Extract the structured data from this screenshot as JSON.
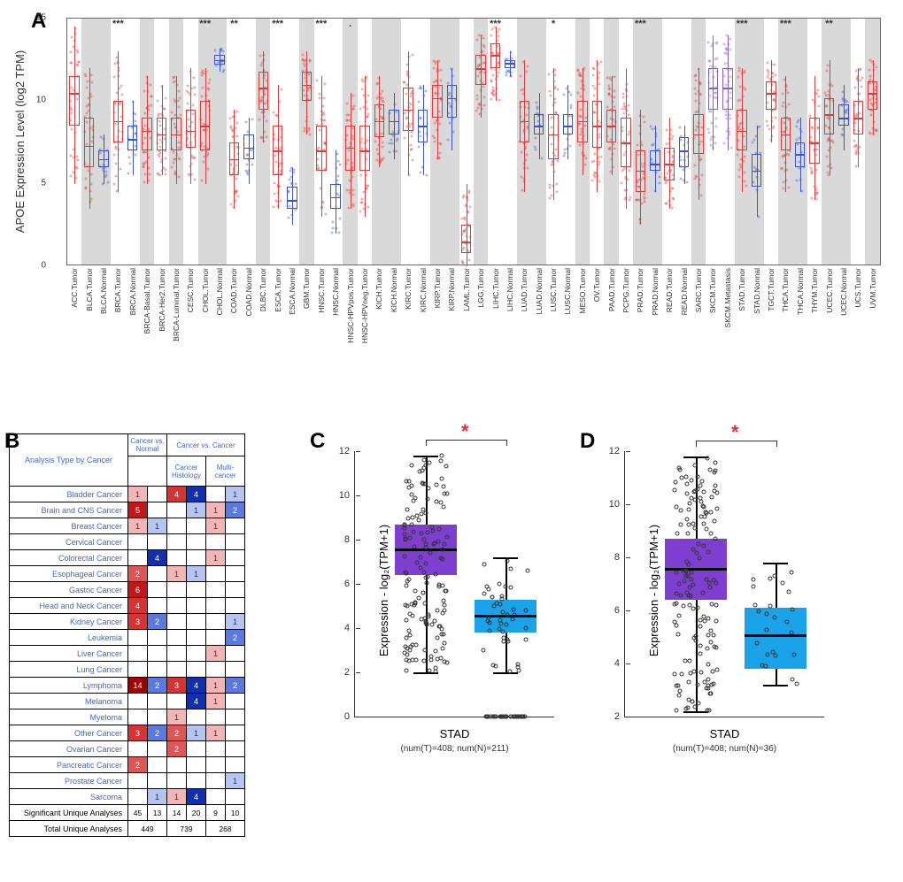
{
  "panel_labels": {
    "A": "A",
    "B": "B",
    "C": "C",
    "D": "D"
  },
  "colors": {
    "tumor": "#e63838",
    "normal": "#3a52d8",
    "metastasis": "#8b5fc9",
    "shade": "#d9d9d9",
    "purple_box": "#7e3fd1",
    "blue_box": "#1aa3e8",
    "sig_star": "#e03030",
    "onc_red_hi": "#c92020",
    "onc_red_lo": "#f2b6b6",
    "onc_blue_hi": "#1030b0",
    "onc_blue_lo": "#b6c4f2"
  },
  "panelA": {
    "y_title": "APOE Expression Level (log2 TPM)",
    "ylim": [
      0,
      15
    ],
    "yticks": [
      0,
      5,
      10,
      15
    ],
    "categories": [
      {
        "label": "ACC.Tumor",
        "type": "T",
        "q1": 8.5,
        "med": 10.5,
        "q3": 11.5,
        "lo": 5,
        "hi": 14.5,
        "shade": false,
        "sig": ""
      },
      {
        "label": "BLCA.Tumor",
        "type": "T",
        "q1": 6,
        "med": 7.3,
        "q3": 9,
        "lo": 3.5,
        "hi": 12,
        "shade": true,
        "sig": ""
      },
      {
        "label": "BLCA.Normal",
        "type": "N",
        "q1": 6,
        "med": 6.5,
        "q3": 7,
        "lo": 5,
        "hi": 8,
        "shade": true,
        "sig": ""
      },
      {
        "label": "BRCA.Tumor",
        "type": "T",
        "q1": 7.5,
        "med": 8.8,
        "q3": 10,
        "lo": 4.5,
        "hi": 13,
        "shade": false,
        "sig": "***"
      },
      {
        "label": "BRCA.Normal",
        "type": "N",
        "q1": 7,
        "med": 7.7,
        "q3": 8.5,
        "lo": 5.5,
        "hi": 10,
        "shade": false,
        "sig": ""
      },
      {
        "label": "BRCA-Basal.Tumor",
        "type": "T",
        "q1": 7,
        "med": 8.2,
        "q3": 9,
        "lo": 5,
        "hi": 11.5,
        "shade": true,
        "sig": ""
      },
      {
        "label": "BRCA-Her2.Tumor",
        "type": "T",
        "q1": 7,
        "med": 8,
        "q3": 9,
        "lo": 5.5,
        "hi": 11,
        "shade": false,
        "sig": ""
      },
      {
        "label": "BRCA-Luminal.Tumor",
        "type": "T",
        "q1": 7,
        "med": 8,
        "q3": 9,
        "lo": 5,
        "hi": 11.5,
        "shade": true,
        "sig": ""
      },
      {
        "label": "CESC.Tumor",
        "type": "T",
        "q1": 7.2,
        "med": 8.2,
        "q3": 9.5,
        "lo": 5,
        "hi": 12,
        "shade": false,
        "sig": ""
      },
      {
        "label": "CHOL.Tumor",
        "type": "T",
        "q1": 7,
        "med": 8.5,
        "q3": 10,
        "lo": 5,
        "hi": 12,
        "shade": true,
        "sig": "***"
      },
      {
        "label": "CHOL.Normal",
        "type": "N",
        "q1": 12.2,
        "med": 12.5,
        "q3": 12.8,
        "lo": 11.8,
        "hi": 13.2,
        "shade": true,
        "sig": ""
      },
      {
        "label": "COAD.Tumor",
        "type": "T",
        "q1": 5.5,
        "med": 6.5,
        "q3": 7.5,
        "lo": 3.5,
        "hi": 9.5,
        "shade": false,
        "sig": "**"
      },
      {
        "label": "COAD.Normal",
        "type": "N",
        "q1": 6.5,
        "med": 7.2,
        "q3": 8,
        "lo": 5,
        "hi": 9,
        "shade": false,
        "sig": ""
      },
      {
        "label": "DLBC.Tumor",
        "type": "T",
        "q1": 9.5,
        "med": 10.8,
        "q3": 11.8,
        "lo": 7.5,
        "hi": 13,
        "shade": true,
        "sig": ""
      },
      {
        "label": "ESCA.Tumor",
        "type": "T",
        "q1": 5.5,
        "med": 7,
        "q3": 8.5,
        "lo": 3.5,
        "hi": 11,
        "shade": false,
        "sig": "***"
      },
      {
        "label": "ESCA.Normal",
        "type": "N",
        "q1": 3.5,
        "med": 4,
        "q3": 4.8,
        "lo": 2.5,
        "hi": 6,
        "shade": false,
        "sig": ""
      },
      {
        "label": "GBM.Tumor",
        "type": "T",
        "q1": 10,
        "med": 11,
        "q3": 11.8,
        "lo": 8,
        "hi": 13,
        "shade": true,
        "sig": ""
      },
      {
        "label": "HNSC.Tumor",
        "type": "T",
        "q1": 5.8,
        "med": 7,
        "q3": 8.5,
        "lo": 3,
        "hi": 11.5,
        "shade": false,
        "sig": "***"
      },
      {
        "label": "HNSC.Normal",
        "type": "N",
        "q1": 3.5,
        "med": 4.2,
        "q3": 5,
        "lo": 2,
        "hi": 7,
        "shade": false,
        "sig": ""
      },
      {
        "label": "HNSC-HPVpos.Tumor",
        "type": "T",
        "q1": 5.8,
        "med": 7.2,
        "q3": 8.5,
        "lo": 3.5,
        "hi": 10.5,
        "shade": true,
        "sig": "."
      },
      {
        "label": "HNSC-HPVneg.Tumor",
        "type": "T",
        "q1": 5.8,
        "med": 7,
        "q3": 8.5,
        "lo": 3,
        "hi": 11.5,
        "shade": false,
        "sig": ""
      },
      {
        "label": "KICH.Tumor",
        "type": "T",
        "q1": 7.8,
        "med": 8.8,
        "q3": 9.8,
        "lo": 6,
        "hi": 11.5,
        "shade": true,
        "sig": ""
      },
      {
        "label": "KICH.Normal",
        "type": "N",
        "q1": 8,
        "med": 8.8,
        "q3": 9.5,
        "lo": 6.5,
        "hi": 10.5,
        "shade": true,
        "sig": ""
      },
      {
        "label": "KIRC.Tumor",
        "type": "T",
        "q1": 8.2,
        "med": 9.5,
        "q3": 10.8,
        "lo": 5.5,
        "hi": 13,
        "shade": false,
        "sig": ""
      },
      {
        "label": "KIRC.Normal",
        "type": "N",
        "q1": 7.5,
        "med": 8.5,
        "q3": 9.5,
        "lo": 5.5,
        "hi": 11,
        "shade": false,
        "sig": ""
      },
      {
        "label": "KIRP.Tumor",
        "type": "T",
        "q1": 9,
        "med": 10.2,
        "q3": 11,
        "lo": 6.5,
        "hi": 12.5,
        "shade": true,
        "sig": ""
      },
      {
        "label": "KIRP.Normal",
        "type": "N",
        "q1": 9,
        "med": 10.2,
        "q3": 11,
        "lo": 7,
        "hi": 12,
        "shade": true,
        "sig": ""
      },
      {
        "label": "LAML.Tumor",
        "type": "T",
        "q1": 0.8,
        "med": 1.5,
        "q3": 2.5,
        "lo": 0,
        "hi": 5,
        "shade": false,
        "sig": ""
      },
      {
        "label": "LGG.Tumor",
        "type": "T",
        "q1": 11,
        "med": 12,
        "q3": 12.8,
        "lo": 9,
        "hi": 14,
        "shade": true,
        "sig": ""
      },
      {
        "label": "LIHC.Tumor",
        "type": "T",
        "q1": 12,
        "med": 12.8,
        "q3": 13.5,
        "lo": 10,
        "hi": 14.5,
        "shade": false,
        "sig": "***"
      },
      {
        "label": "LIHC.Normal",
        "type": "N",
        "q1": 12,
        "med": 12.3,
        "q3": 12.5,
        "lo": 11.5,
        "hi": 13,
        "shade": false,
        "sig": ""
      },
      {
        "label": "LUAD.Tumor",
        "type": "T",
        "q1": 7.5,
        "med": 8.8,
        "q3": 10,
        "lo": 4.5,
        "hi": 12.5,
        "shade": true,
        "sig": ""
      },
      {
        "label": "LUAD.Normal",
        "type": "N",
        "q1": 8,
        "med": 8.5,
        "q3": 9.2,
        "lo": 6.5,
        "hi": 10.5,
        "shade": true,
        "sig": ""
      },
      {
        "label": "LUSC.Tumor",
        "type": "T",
        "q1": 6.5,
        "med": 8,
        "q3": 9.2,
        "lo": 4,
        "hi": 12,
        "shade": false,
        "sig": "*"
      },
      {
        "label": "LUSC.Normal",
        "type": "N",
        "q1": 8,
        "med": 8.5,
        "q3": 9.2,
        "lo": 6.5,
        "hi": 11,
        "shade": false,
        "sig": ""
      },
      {
        "label": "MESO.Tumor",
        "type": "T",
        "q1": 7.5,
        "med": 8.8,
        "q3": 10,
        "lo": 5.5,
        "hi": 12,
        "shade": true,
        "sig": ""
      },
      {
        "label": "OV.Tumor",
        "type": "T",
        "q1": 7.2,
        "med": 8.5,
        "q3": 10,
        "lo": 4.5,
        "hi": 12.5,
        "shade": false,
        "sig": ""
      },
      {
        "label": "PAAD.Tumor",
        "type": "T",
        "q1": 7.5,
        "med": 8.5,
        "q3": 9.5,
        "lo": 5.5,
        "hi": 11.5,
        "shade": true,
        "sig": ""
      },
      {
        "label": "PCPG.Tumor",
        "type": "T",
        "q1": 6,
        "med": 7.5,
        "q3": 9,
        "lo": 3.5,
        "hi": 12,
        "shade": false,
        "sig": ""
      },
      {
        "label": "PRAD.Tumor",
        "type": "T",
        "q1": 4.5,
        "med": 5.8,
        "q3": 7,
        "lo": 2.5,
        "hi": 9.5,
        "shade": true,
        "sig": "***"
      },
      {
        "label": "PRAD.Normal",
        "type": "N",
        "q1": 5.8,
        "med": 6.2,
        "q3": 7,
        "lo": 4.5,
        "hi": 8.5,
        "shade": true,
        "sig": ""
      },
      {
        "label": "READ.Tumor",
        "type": "T",
        "q1": 5.2,
        "med": 6.2,
        "q3": 7.2,
        "lo": 3.5,
        "hi": 9,
        "shade": false,
        "sig": ""
      },
      {
        "label": "READ.Normal",
        "type": "N",
        "q1": 6,
        "med": 7,
        "q3": 7.8,
        "lo": 5,
        "hi": 8.5,
        "shade": false,
        "sig": ""
      },
      {
        "label": "SARC.Tumor",
        "type": "T",
        "q1": 6.8,
        "med": 8,
        "q3": 9.2,
        "lo": 4,
        "hi": 12,
        "shade": true,
        "sig": ""
      },
      {
        "label": "SKCM.Tumor",
        "type": "M",
        "q1": 9.5,
        "med": 10.8,
        "q3": 12,
        "lo": 7,
        "hi": 14,
        "shade": false,
        "sig": "*"
      },
      {
        "label": "SKCM.Metastasis",
        "type": "M",
        "q1": 9.5,
        "med": 10.8,
        "q3": 12,
        "lo": 7,
        "hi": 14,
        "shade": false,
        "sig": ""
      },
      {
        "label": "STAD.Tumor",
        "type": "T",
        "q1": 7,
        "med": 8.2,
        "q3": 9.5,
        "lo": 4.5,
        "hi": 12,
        "shade": true,
        "sig": "***"
      },
      {
        "label": "STAD.Normal",
        "type": "N",
        "q1": 4.8,
        "med": 5.8,
        "q3": 6.8,
        "lo": 3,
        "hi": 8.5,
        "shade": true,
        "sig": ""
      },
      {
        "label": "TGCT.Tumor",
        "type": "T",
        "q1": 9.5,
        "med": 10.5,
        "q3": 11.2,
        "lo": 7.5,
        "hi": 12.5,
        "shade": false,
        "sig": ""
      },
      {
        "label": "THCA.Tumor",
        "type": "T",
        "q1": 7,
        "med": 8,
        "q3": 9,
        "lo": 4.5,
        "hi": 11.5,
        "shade": true,
        "sig": "***"
      },
      {
        "label": "THCA.Normal",
        "type": "N",
        "q1": 6,
        "med": 6.8,
        "q3": 7.5,
        "lo": 4.5,
        "hi": 9,
        "shade": true,
        "sig": ""
      },
      {
        "label": "THYM.Tumor",
        "type": "T",
        "q1": 6.2,
        "med": 7.5,
        "q3": 9,
        "lo": 4,
        "hi": 11.5,
        "shade": false,
        "sig": ""
      },
      {
        "label": "UCEC.Tumor",
        "type": "T",
        "q1": 8,
        "med": 9.2,
        "q3": 10.2,
        "lo": 5.5,
        "hi": 12.5,
        "shade": true,
        "sig": "**"
      },
      {
        "label": "UCEC.Normal",
        "type": "N",
        "q1": 8.5,
        "med": 9,
        "q3": 9.8,
        "lo": 7,
        "hi": 11,
        "shade": true,
        "sig": ""
      },
      {
        "label": "UCS.Tumor",
        "type": "T",
        "q1": 8,
        "med": 9,
        "q3": 10,
        "lo": 6,
        "hi": 12,
        "shade": false,
        "sig": ""
      },
      {
        "label": "UVM.Tumor",
        "type": "T",
        "q1": 9.5,
        "med": 10.5,
        "q3": 11.2,
        "lo": 8,
        "hi": 12.5,
        "shade": true,
        "sig": ""
      }
    ]
  },
  "panelB": {
    "row_header": "Analysis Type by Cancer",
    "group_headers": [
      "Cancer vs. Normal",
      "Cancer vs. Cancer"
    ],
    "sub_headers": [
      "",
      "Cancer Histology",
      "Multi-cancer"
    ],
    "rows": [
      {
        "label": "Bladder Cancer",
        "cells": [
          "1",
          "",
          "4",
          "4",
          "",
          "1"
        ]
      },
      {
        "label": "Brain and CNS Cancer",
        "cells": [
          "5",
          "",
          "",
          "1",
          "1",
          "2"
        ]
      },
      {
        "label": "Breast Cancer",
        "cells": [
          "1",
          "1",
          "",
          "",
          "1",
          ""
        ]
      },
      {
        "label": "Cervical Cancer",
        "cells": [
          "",
          "",
          "",
          "",
          "",
          ""
        ]
      },
      {
        "label": "Colorectal Cancer",
        "cells": [
          "",
          "4",
          "",
          "",
          "1",
          ""
        ]
      },
      {
        "label": "Esophageal Cancer",
        "cells": [
          "2",
          "",
          "1",
          "1",
          "",
          ""
        ]
      },
      {
        "label": "Gastric Cancer",
        "cells": [
          "6",
          "",
          "",
          "",
          "",
          ""
        ]
      },
      {
        "label": "Head and Neck Cancer",
        "cells": [
          "4",
          "",
          "",
          "",
          "",
          ""
        ]
      },
      {
        "label": "Kidney Cancer",
        "cells": [
          "3",
          "2",
          "",
          "",
          "",
          "1"
        ]
      },
      {
        "label": "Leukemia",
        "cells": [
          "",
          "",
          "",
          "",
          "",
          "2"
        ]
      },
      {
        "label": "Liver Cancer",
        "cells": [
          "",
          "",
          "",
          "",
          "1",
          ""
        ]
      },
      {
        "label": "Lung Cancer",
        "cells": [
          "",
          "",
          "",
          "",
          "",
          ""
        ]
      },
      {
        "label": "Lymphoma",
        "cells": [
          "14",
          "2",
          "3",
          "4",
          "1",
          "2"
        ]
      },
      {
        "label": "Melanoma",
        "cells": [
          "",
          "",
          "",
          "4",
          "1",
          ""
        ]
      },
      {
        "label": "Myeloma",
        "cells": [
          "",
          "",
          "1",
          "",
          "",
          ""
        ]
      },
      {
        "label": "Other Cancer",
        "cells": [
          "3",
          "2",
          "2",
          "1",
          "1",
          ""
        ]
      },
      {
        "label": "Ovarian Cancer",
        "cells": [
          "",
          "",
          "2",
          "",
          "",
          ""
        ]
      },
      {
        "label": "Pancreatic Cancer",
        "cells": [
          "2",
          "",
          "",
          "",
          "",
          ""
        ]
      },
      {
        "label": "Prostate Cancer",
        "cells": [
          "",
          "",
          "",
          "",
          "",
          "1"
        ]
      },
      {
        "label": "Sarcoma",
        "cells": [
          "",
          "1",
          "1",
          "4",
          "",
          ""
        ]
      }
    ],
    "summary": [
      {
        "label": "Significant Unique Analyses",
        "cells": [
          "45",
          "13",
          "14",
          "20",
          "9",
          "10"
        ]
      },
      {
        "label": "Total Unique Analyses",
        "cells": [
          "449",
          "",
          "739",
          "",
          "268",
          ""
        ]
      }
    ],
    "cell_colors": {
      "1r": "#f2b6b6",
      "2r": "#ea8a8a",
      "3r": "#e05555",
      "4r": "#d83333",
      "5r": "#c92020",
      "6r": "#c01818",
      "14r": "#a00000",
      "1b": "#b6c4f2",
      "2b": "#7a92e0",
      "4b": "#2040c0"
    }
  },
  "panelC": {
    "y_title": "Expression - log₂(TPM+1)",
    "x_title": "STAD",
    "x_sub": "(num(T)=408; num(N)=211)",
    "ylim": [
      0,
      12
    ],
    "yticks": [
      0,
      2,
      4,
      6,
      8,
      10,
      12
    ],
    "sig": "*",
    "boxes": [
      {
        "name": "T",
        "color": "#7e3fd1",
        "q1": 6.4,
        "med": 7.6,
        "q3": 8.7,
        "lo": 2.0,
        "hi": 11.8,
        "n": 150
      },
      {
        "name": "N",
        "color": "#1aa3e8",
        "q1": 3.8,
        "med": 4.6,
        "q3": 5.3,
        "lo": 2.0,
        "hi": 7.2,
        "n": 80,
        "bottom_cluster": true
      }
    ]
  },
  "panelD": {
    "y_title": "Expression - log₂(TPM+1)",
    "x_title": "STAD",
    "x_sub": "(num(T)=408; num(N)=36)",
    "ylim": [
      2,
      12
    ],
    "yticks": [
      2,
      4,
      6,
      8,
      10,
      12
    ],
    "sig": "*",
    "boxes": [
      {
        "name": "T",
        "color": "#7e3fd1",
        "q1": 6.4,
        "med": 7.6,
        "q3": 8.7,
        "lo": 2.2,
        "hi": 11.8,
        "n": 150
      },
      {
        "name": "N",
        "color": "#1aa3e8",
        "q1": 3.8,
        "med": 5.1,
        "q3": 6.1,
        "lo": 3.2,
        "hi": 7.8,
        "n": 25
      }
    ]
  }
}
